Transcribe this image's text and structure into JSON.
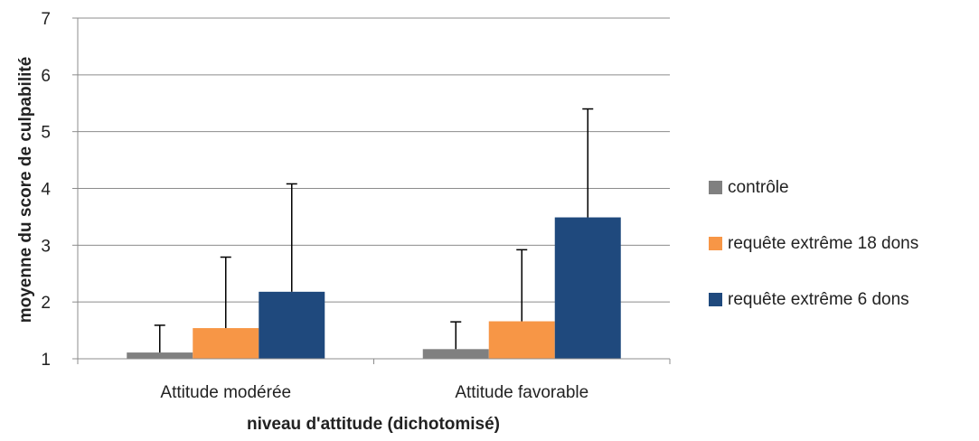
{
  "chart_data": {
    "type": "bar",
    "title": "",
    "xlabel": "niveau d'attitude (dichotomisé)",
    "ylabel": "moyenne du score de culpabilité",
    "ylim": [
      1,
      7
    ],
    "yticks": [
      "1",
      "2",
      "3",
      "4",
      "5",
      "6",
      "7"
    ],
    "grid": true,
    "legend_position": "right",
    "categories": [
      "Attitude modérée",
      "Attitude favorable"
    ],
    "series": [
      {
        "name": "contrôle",
        "color": "#808080",
        "values": [
          1.11,
          1.17
        ],
        "error_upper": [
          1.59,
          1.65
        ]
      },
      {
        "name": "requête extrême 18 dons",
        "color": "#f79646",
        "values": [
          1.54,
          1.66
        ],
        "error_upper": [
          2.79,
          2.92
        ]
      },
      {
        "name": "requête extrême 6 dons",
        "color": "#1f497d",
        "values": [
          2.18,
          3.49
        ],
        "error_upper": [
          4.08,
          5.4
        ]
      }
    ]
  }
}
